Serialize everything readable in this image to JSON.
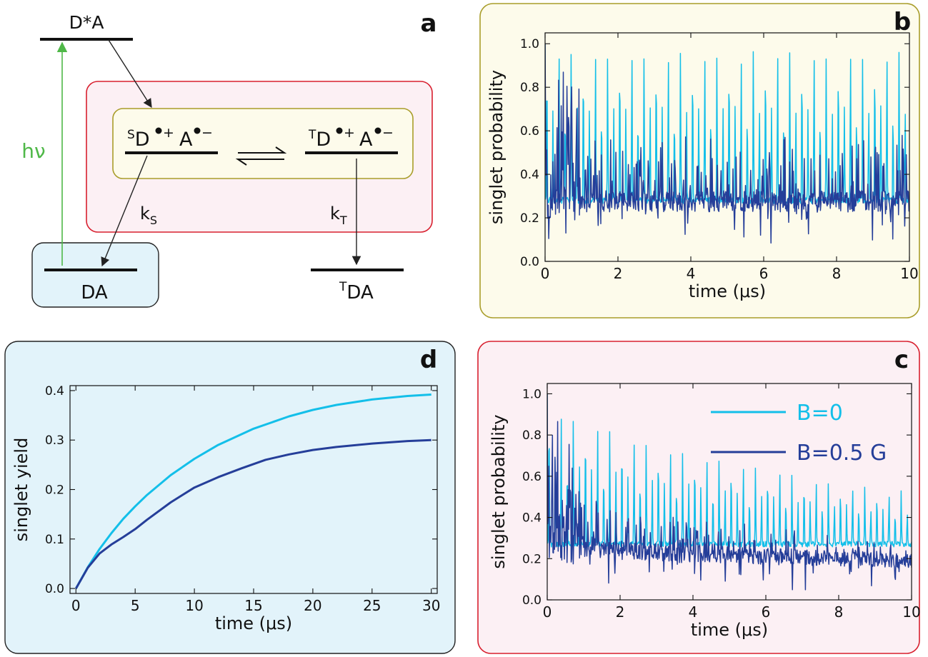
{
  "colors": {
    "light_blue": "#13bfe9",
    "dark_blue": "#253e99",
    "green_arrow": "#4fb848",
    "box_red_border": "#d8202f",
    "box_red_fill": "#fcf0f4",
    "box_olive_border": "#a99d2a",
    "box_olive_fill": "#fdfbeb",
    "box_blue_fill": "#e2f3fa"
  },
  "panel_letters": {
    "a": "a",
    "b": "b",
    "c": "c",
    "d": "d"
  },
  "diagram": {
    "excited_state": "D*A",
    "ground_state": "DA",
    "triplet_ground": {
      "sup": "T",
      "base": "DA"
    },
    "singlet_pair": {
      "sup": "S",
      "d": "D",
      "d_charge": "+",
      "a": "A",
      "a_charge": "−"
    },
    "triplet_pair": {
      "sup": "T",
      "d": "D",
      "d_charge": "+",
      "a": "A",
      "a_charge": "−"
    },
    "hv_label": "hν",
    "k_singlet": {
      "k": "k",
      "sub": "S"
    },
    "k_triplet": {
      "k": "k",
      "sub": "T"
    }
  },
  "chart_data": [
    {
      "panel": "b",
      "type": "line",
      "xlabel": "time (μs)",
      "ylabel": "singlet probability",
      "xlim": [
        0,
        10
      ],
      "ylim": [
        0,
        1.05
      ],
      "xticks": [
        0,
        2,
        4,
        6,
        8,
        10
      ],
      "yticks": [
        0.0,
        0.2,
        0.4,
        0.6,
        0.8,
        1.0
      ],
      "ytick_labels": [
        "0.0",
        "0.2",
        "0.4",
        "0.6",
        "0.8",
        "1.0"
      ],
      "series": [
        {
          "color": "#13bfe9",
          "model": "periodic",
          "period": 0.3333,
          "peaks": [
            0.98,
            0.73
          ],
          "baseline": 0.28,
          "decay": 0
        },
        {
          "color": "#253e99",
          "model": "noisy",
          "baseline": 0.27,
          "amplitude": 0.6,
          "decay": 0
        }
      ]
    },
    {
      "panel": "c",
      "type": "line",
      "xlabel": "time (μs)",
      "ylabel": "singlet probability",
      "xlim": [
        0,
        10
      ],
      "ylim": [
        0,
        1.05
      ],
      "xticks": [
        0,
        2,
        4,
        6,
        8,
        10
      ],
      "yticks": [
        0.0,
        0.2,
        0.4,
        0.6,
        0.8,
        1.0
      ],
      "ytick_labels": [
        "0.0",
        "0.2",
        "0.4",
        "0.6",
        "0.8",
        "1.0"
      ],
      "legend": "top-right",
      "series": [
        {
          "name": "B=0",
          "color": "#13bfe9",
          "model": "periodic",
          "period": 0.3333,
          "peaks": [
            0.95,
            0.72
          ],
          "baseline": 0.27,
          "decay": 0.1
        },
        {
          "name": "B=0.5 G",
          "color": "#253e99",
          "model": "noisy",
          "baseline": 0.26,
          "amplitude": 0.6,
          "decay": 0.1
        }
      ]
    },
    {
      "panel": "d",
      "type": "line",
      "xlabel": "time (μs)",
      "ylabel": "singlet yield",
      "xlim": [
        -0.5,
        30.5
      ],
      "ylim": [
        -0.01,
        0.41
      ],
      "xticks": [
        0,
        5,
        10,
        15,
        20,
        25,
        30
      ],
      "yticks": [
        0.0,
        0.1,
        0.2,
        0.3,
        0.4
      ],
      "ytick_labels": [
        "0.0",
        "0.1",
        "0.2",
        "0.3",
        "0.4"
      ],
      "series": [
        {
          "color": "#13bfe9",
          "x": [
            0,
            1,
            2,
            3,
            4,
            5,
            6,
            8,
            10,
            12,
            15,
            18,
            20,
            22,
            25,
            28,
            30
          ],
          "values": [
            0.0,
            0.043,
            0.08,
            0.112,
            0.141,
            0.166,
            0.189,
            0.229,
            0.262,
            0.29,
            0.323,
            0.348,
            0.361,
            0.371,
            0.382,
            0.389,
            0.392
          ]
        },
        {
          "color": "#253e99",
          "x": [
            0,
            1,
            2,
            3,
            4,
            5,
            6,
            8,
            10,
            12,
            14,
            16,
            18,
            20,
            22,
            25,
            28,
            30
          ],
          "values": [
            0.0,
            0.042,
            0.071,
            0.089,
            0.104,
            0.12,
            0.139,
            0.174,
            0.204,
            0.225,
            0.243,
            0.26,
            0.271,
            0.28,
            0.286,
            0.293,
            0.298,
            0.3
          ]
        }
      ]
    }
  ]
}
